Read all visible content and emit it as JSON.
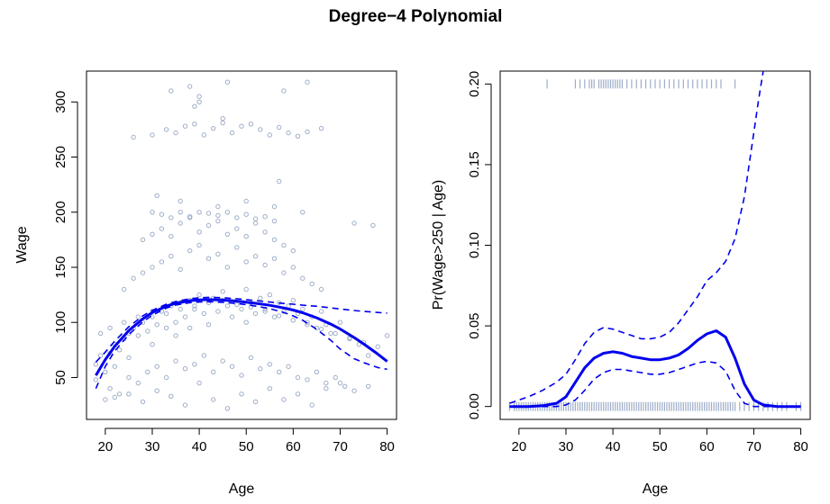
{
  "figure": {
    "title": "Degree−4 Polynomial"
  },
  "colors": {
    "points": "#9eaec8",
    "fit": "#0000ee",
    "axis": "#000000"
  },
  "chart_data": [
    {
      "type": "scatter",
      "xlabel": "Age",
      "ylabel": "Wage",
      "xlim": [
        16,
        82
      ],
      "ylim": [
        12,
        328
      ],
      "xticks": [
        20,
        30,
        40,
        50,
        60,
        70,
        80
      ],
      "yticks": [
        50,
        100,
        150,
        200,
        250,
        300
      ],
      "xtick_labels": [
        "20",
        "30",
        "40",
        "50",
        "60",
        "70",
        "80"
      ],
      "ytick_labels": [
        "50",
        "100",
        "150",
        "200",
        "250",
        "300"
      ],
      "grid": false,
      "series": [
        {
          "kind": "points",
          "x": [
            18,
            18,
            19,
            20,
            21,
            22,
            22,
            23,
            24,
            25,
            25,
            26,
            27,
            28,
            29,
            30,
            30,
            31,
            32,
            33,
            34,
            35,
            35,
            36,
            37,
            38,
            38,
            39,
            40,
            41,
            42,
            42,
            43,
            44,
            45,
            46,
            47,
            48,
            49,
            50,
            50,
            51,
            52,
            53,
            54,
            55,
            56,
            57,
            58,
            59,
            60,
            61,
            62,
            63,
            64,
            65,
            66,
            67,
            68,
            70,
            72,
            74,
            76,
            80,
            21,
            23,
            25,
            27,
            29,
            31,
            33,
            35,
            37,
            39,
            41,
            43,
            45,
            47,
            49,
            51,
            53,
            55,
            57,
            59,
            61,
            63,
            65,
            67,
            69,
            71,
            24,
            26,
            28,
            30,
            32,
            34,
            36,
            38,
            40,
            42,
            44,
            46,
            48,
            50,
            52,
            54,
            56,
            58,
            60,
            62,
            64,
            66,
            28,
            30,
            32,
            34,
            36,
            38,
            40,
            42,
            44,
            46,
            48,
            50,
            52,
            54,
            56,
            58,
            60,
            30,
            32,
            34,
            36,
            38,
            40,
            42,
            44,
            46,
            48,
            50,
            52,
            54,
            56,
            26,
            30,
            33,
            35,
            37,
            39,
            41,
            43,
            45,
            47,
            49,
            51,
            53,
            55,
            57,
            59,
            61,
            63,
            66,
            34,
            38,
            40,
            46,
            58,
            63,
            39,
            40,
            45,
            57,
            20,
            22,
            25,
            28,
            31,
            34,
            37,
            40,
            43,
            46,
            49,
            52,
            55,
            58,
            61,
            64,
            67,
            70,
            73,
            76,
            19,
            21,
            24,
            27,
            30,
            33,
            36,
            39,
            42,
            45,
            48,
            51,
            54,
            57,
            60,
            63,
            66,
            69,
            72,
            75,
            78,
            31,
            36,
            44,
            50,
            56,
            62,
            73,
            77
          ],
          "y": [
            62,
            48,
            70,
            55,
            72,
            80,
            60,
            75,
            85,
            90,
            68,
            95,
            88,
            100,
            92,
            105,
            80,
            98,
            110,
            95,
            115,
            100,
            88,
            118,
            105,
            120,
            95,
            112,
            125,
            108,
            118,
            98,
            122,
            110,
            128,
            115,
            105,
            120,
            112,
            130,
            100,
            118,
            108,
            122,
            112,
            125,
            105,
            118,
            110,
            115,
            120,
            108,
            112,
            100,
            105,
            95,
            110,
            98,
            90,
            100,
            85,
            80,
            70,
            88,
            40,
            35,
            50,
            45,
            55,
            60,
            50,
            65,
            58,
            62,
            70,
            55,
            65,
            60,
            52,
            68,
            58,
            62,
            55,
            60,
            50,
            48,
            55,
            45,
            50,
            42,
            130,
            140,
            145,
            150,
            155,
            160,
            148,
            165,
            170,
            158,
            162,
            150,
            168,
            155,
            160,
            152,
            158,
            145,
            150,
            140,
            135,
            130,
            175,
            180,
            185,
            178,
            190,
            195,
            182,
            188,
            192,
            180,
            185,
            178,
            190,
            182,
            175,
            170,
            165,
            200,
            198,
            195,
            200,
            196,
            200,
            199,
            197,
            200,
            195,
            198,
            194,
            196,
            192,
            268,
            270,
            275,
            272,
            278,
            280,
            270,
            276,
            281,
            272,
            278,
            280,
            275,
            270,
            277,
            272,
            269,
            273,
            276,
            310,
            314,
            305,
            318,
            310,
            318,
            296,
            300,
            285,
            228,
            30,
            32,
            35,
            28,
            38,
            33,
            25,
            45,
            30,
            22,
            35,
            28,
            40,
            30,
            35,
            25,
            40,
            45,
            38,
            42,
            90,
            95,
            100,
            105,
            110,
            108,
            112,
            115,
            118,
            120,
            116,
            114,
            110,
            106,
            102,
            98,
            94,
            90,
            86,
            82,
            78,
            215,
            210,
            205,
            210,
            205,
            200,
            190,
            188
          ]
        },
        {
          "kind": "fit",
          "x": [
            18,
            20,
            22,
            25,
            28,
            30,
            33,
            35,
            38,
            40,
            42,
            45,
            48,
            50,
            52,
            55,
            58,
            60,
            62,
            65,
            68,
            70,
            73,
            75,
            78,
            80
          ],
          "y": [
            51.9,
            66.2,
            78.3,
            92.5,
            103.3,
            108.9,
            114.8,
            117.4,
            119.7,
            120.4,
            120.7,
            120.3,
            119.3,
            118.4,
            117.3,
            115.5,
            113.1,
            111.2,
            108.8,
            104.2,
            98.5,
            94.0,
            86.2,
            80.5,
            71.3,
            64.6
          ]
        },
        {
          "kind": "upper-band",
          "x": [
            18,
            20,
            22,
            25,
            28,
            30,
            33,
            35,
            38,
            40,
            42,
            45,
            48,
            50,
            52,
            55,
            58,
            60,
            62,
            65,
            68,
            70,
            73,
            75,
            78,
            80
          ],
          "y": [
            64,
            73,
            83,
            96,
            106,
            111,
            116.5,
            119,
            121.5,
            122.3,
            122.7,
            122.4,
            121.4,
            120.7,
            119.8,
            118.5,
            117.2,
            116.5,
            115.6,
            114.6,
            113.2,
            112.2,
            110.8,
            110.0,
            109.0,
            108.4
          ]
        },
        {
          "kind": "lower-band",
          "x": [
            18,
            20,
            22,
            25,
            28,
            30,
            33,
            35,
            38,
            40,
            42,
            45,
            48,
            50,
            52,
            55,
            58,
            60,
            62,
            65,
            68,
            70,
            73,
            75,
            78,
            80
          ],
          "y": [
            40,
            60,
            74,
            89,
            100.5,
            106.5,
            113,
            115.8,
            117.9,
            118.5,
            118.7,
            118.2,
            117.2,
            116.1,
            114.8,
            112.5,
            109.0,
            105.9,
            102.0,
            93.8,
            83.8,
            75.8,
            67.0,
            63.5,
            59.0,
            57.5
          ]
        }
      ]
    },
    {
      "type": "line",
      "xlabel": "Age",
      "ylabel": "Pr(Wage>250 | Age)",
      "xlim": [
        16,
        82
      ],
      "ylim": [
        -0.008,
        0.208
      ],
      "xticks": [
        20,
        30,
        40,
        50,
        60,
        70,
        80
      ],
      "yticks": [
        0,
        0.05,
        0.1,
        0.15,
        0.2
      ],
      "xtick_labels": [
        "20",
        "30",
        "40",
        "50",
        "60",
        "70",
        "80"
      ],
      "ytick_labels": [
        "0.00",
        "0.05",
        "0.10",
        "0.15",
        "0.20"
      ],
      "grid": false,
      "series": [
        {
          "kind": "fit",
          "x": [
            18,
            20,
            22,
            25,
            28,
            30,
            32,
            34,
            36,
            38,
            40,
            42,
            44,
            46,
            48,
            50,
            52,
            54,
            56,
            58,
            60,
            62,
            64,
            66,
            68,
            70,
            72,
            75,
            78,
            80
          ],
          "y": [
            0,
            0,
            0,
            0.0005,
            0.002,
            0.006,
            0.015,
            0.024,
            0.03,
            0.033,
            0.034,
            0.033,
            0.031,
            0.03,
            0.029,
            0.029,
            0.03,
            0.032,
            0.036,
            0.041,
            0.045,
            0.047,
            0.043,
            0.03,
            0.014,
            0.004,
            0.001,
            0,
            0,
            0
          ]
        },
        {
          "kind": "upper-band",
          "x": [
            18,
            20,
            22,
            25,
            28,
            30,
            32,
            34,
            36,
            38,
            40,
            42,
            44,
            46,
            48,
            50,
            52,
            54,
            56,
            58,
            60,
            62,
            64,
            66,
            68,
            70,
            71,
            72
          ],
          "y": [
            0.002,
            0.004,
            0.006,
            0.01,
            0.015,
            0.02,
            0.029,
            0.039,
            0.046,
            0.049,
            0.048,
            0.046,
            0.044,
            0.042,
            0.042,
            0.043,
            0.046,
            0.052,
            0.06,
            0.068,
            0.078,
            0.083,
            0.09,
            0.104,
            0.13,
            0.17,
            0.19,
            0.208
          ]
        },
        {
          "kind": "lower-band",
          "x": [
            18,
            20,
            22,
            25,
            28,
            30,
            32,
            34,
            36,
            38,
            40,
            42,
            44,
            46,
            48,
            50,
            52,
            54,
            56,
            58,
            60,
            62,
            64,
            66,
            68,
            70,
            72,
            74,
            76,
            78,
            80
          ],
          "y": [
            0,
            0,
            0,
            0,
            0,
            0.001,
            0.004,
            0.01,
            0.017,
            0.021,
            0.023,
            0.023,
            0.022,
            0.021,
            0.02,
            0.02,
            0.021,
            0.023,
            0.025,
            0.027,
            0.028,
            0.027,
            0.022,
            0.01,
            0.002,
            0,
            0,
            0,
            0,
            0,
            0
          ]
        },
        {
          "kind": "rug-top",
          "x": [
            26,
            32,
            33,
            34,
            35,
            35.5,
            36,
            37,
            37.5,
            38,
            38.5,
            39,
            39.5,
            40,
            40.5,
            41,
            41.5,
            42,
            43,
            44,
            45,
            46,
            47,
            48,
            49,
            50,
            51,
            52,
            53,
            54,
            55,
            56,
            57,
            58,
            59,
            60,
            61,
            62,
            63,
            66
          ]
        },
        {
          "kind": "rug-bottom",
          "x": [
            18,
            19,
            19.5,
            20,
            20.5,
            21,
            21.5,
            22,
            22.5,
            23,
            23.5,
            24,
            24.5,
            25,
            25.5,
            26,
            26.5,
            27,
            27.5,
            28,
            28.5,
            29,
            29.5,
            30,
            30.5,
            31,
            31.5,
            32,
            32.5,
            33,
            33.5,
            34,
            34.5,
            35,
            35.5,
            36,
            36.5,
            37,
            37.5,
            38,
            38.5,
            39,
            39.5,
            40,
            40.5,
            41,
            41.5,
            42,
            42.5,
            43,
            43.5,
            44,
            44.5,
            45,
            45.5,
            46,
            46.5,
            47,
            47.5,
            48,
            48.5,
            49,
            49.5,
            50,
            50.5,
            51,
            51.5,
            52,
            52.5,
            53,
            53.5,
            54,
            54.5,
            55,
            55.5,
            56,
            56.5,
            57,
            57.5,
            58,
            58.5,
            59,
            59.5,
            60,
            60.5,
            61,
            61.5,
            62,
            62.5,
            63,
            63.5,
            64,
            64.5,
            65,
            65.5,
            66,
            67,
            68,
            69,
            70,
            71,
            72,
            73,
            74,
            75,
            76,
            77,
            79,
            80
          ]
        }
      ]
    }
  ]
}
